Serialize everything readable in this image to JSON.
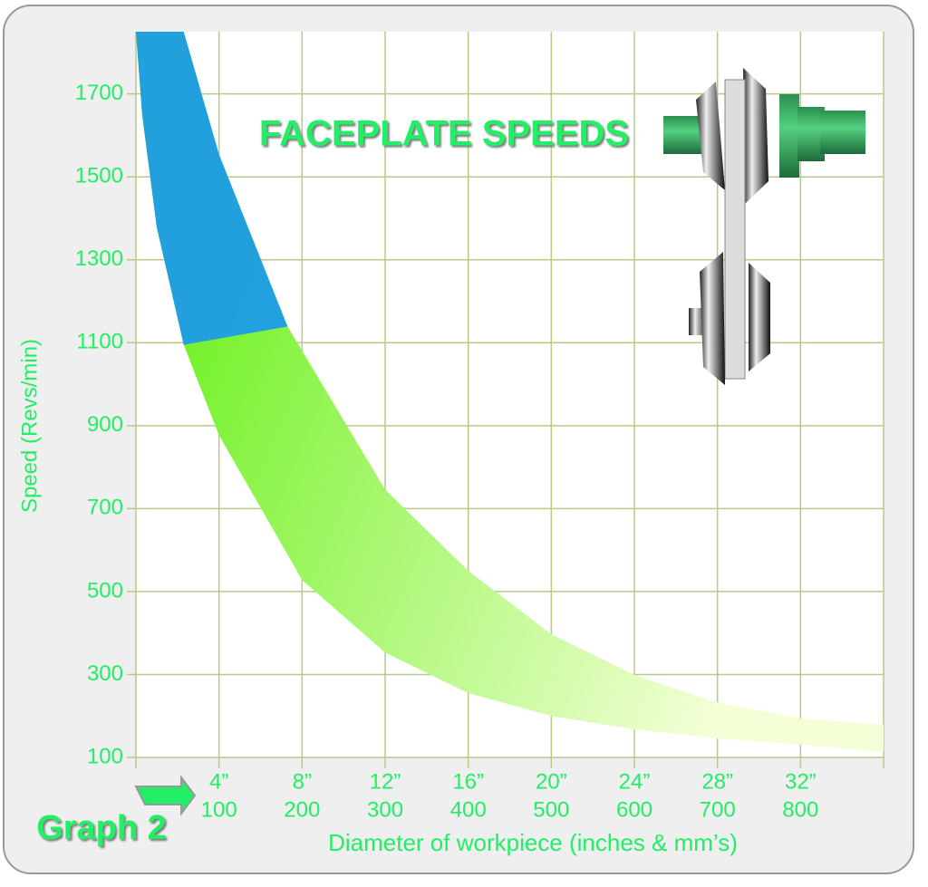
{
  "chart_data": {
    "type": "band",
    "title": "FACEPLATE SPEEDS",
    "caption": "Graph 2",
    "y_label": "Speed (Revs/min)",
    "x_label": "Diameter of workpiece (inches & mm’s)",
    "xlim": [
      0,
      36
    ],
    "ylim": [
      100,
      1850
    ],
    "xticks": [
      {
        "value": 4,
        "label": "4”"
      },
      {
        "value": 8,
        "label": "8”"
      },
      {
        "value": 12,
        "label": "12”"
      },
      {
        "value": 16,
        "label": "16”"
      },
      {
        "value": 20,
        "label": "20”"
      },
      {
        "value": 24,
        "label": "24”"
      },
      {
        "value": 28,
        "label": "28”"
      },
      {
        "value": 32,
        "label": "32”"
      }
    ],
    "x2lim": [
      0,
      900
    ],
    "x2ticks": [
      100,
      200,
      300,
      400,
      500,
      600,
      700,
      800
    ],
    "yticks": [
      100,
      300,
      500,
      700,
      900,
      1100,
      1300,
      1500,
      1700
    ],
    "grid": true,
    "colors": {
      "high": "#1e9be8",
      "low": "#55ee00",
      "fade": "#f4ffd8",
      "text": "#22ee66"
    },
    "upper": {
      "x": [
        2.3,
        4,
        7.3,
        12,
        16,
        20,
        24,
        28,
        32,
        36
      ],
      "values": [
        1850,
        1554,
        1139,
        746,
        550,
        397,
        299,
        233,
        194,
        179
      ]
    },
    "lower": {
      "x": [
        0,
        0.3,
        1,
        2.3,
        4,
        8,
        12,
        16,
        20,
        24,
        28,
        32,
        36
      ],
      "values": [
        1850,
        1650,
        1379,
        1095,
        877,
        528,
        353,
        255,
        200,
        168,
        146,
        131,
        113
      ]
    }
  }
}
